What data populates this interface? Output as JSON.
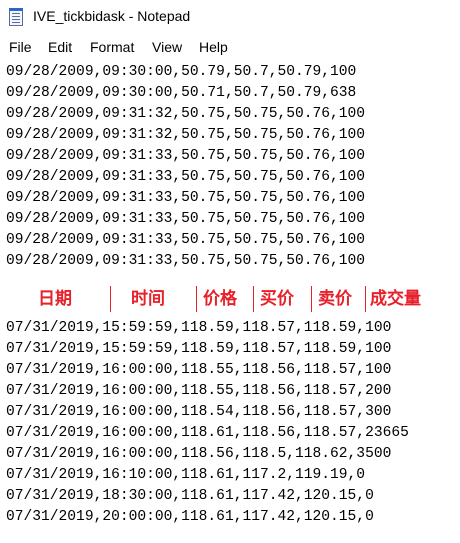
{
  "window": {
    "title": "IVE_tickbidask - Notepad",
    "icon": "notepad-icon"
  },
  "menu": {
    "items": [
      "File",
      "Edit",
      "Format",
      "View",
      "Help"
    ]
  },
  "document": {
    "lines_top": [
      "09/28/2009,09:30:00,50.79,50.7,50.79,100",
      "09/28/2009,09:30:00,50.71,50.7,50.79,638",
      "09/28/2009,09:31:32,50.75,50.75,50.76,100",
      "09/28/2009,09:31:32,50.75,50.75,50.76,100",
      "09/28/2009,09:31:33,50.75,50.75,50.76,100",
      "09/28/2009,09:31:33,50.75,50.75,50.76,100",
      "09/28/2009,09:31:33,50.75,50.75,50.76,100",
      "09/28/2009,09:31:33,50.75,50.75,50.76,100",
      "09/28/2009,09:31:33,50.75,50.75,50.76,100",
      "09/28/2009,09:31:33,50.75,50.75,50.76,100"
    ],
    "column_labels": [
      "日期",
      "时间",
      "价格",
      "买价",
      "卖价",
      "成交量"
    ],
    "label_color": "#e8202a",
    "lines_bottom": [
      "07/31/2019,15:59:59,118.59,118.57,118.59,100",
      "07/31/2019,15:59:59,118.59,118.57,118.59,100",
      "07/31/2019,16:00:00,118.55,118.56,118.57,100",
      "07/31/2019,16:00:00,118.55,118.56,118.57,200",
      "07/31/2019,16:00:00,118.54,118.56,118.57,300",
      "07/31/2019,16:00:00,118.61,118.56,118.57,23665",
      "07/31/2019,16:00:00,118.56,118.5,118.62,3500",
      "07/31/2019,16:10:00,118.61,117.2,119.19,0",
      "07/31/2019,18:30:00,118.61,117.42,120.15,0",
      "07/31/2019,20:00:00,118.61,117.42,120.15,0"
    ]
  }
}
